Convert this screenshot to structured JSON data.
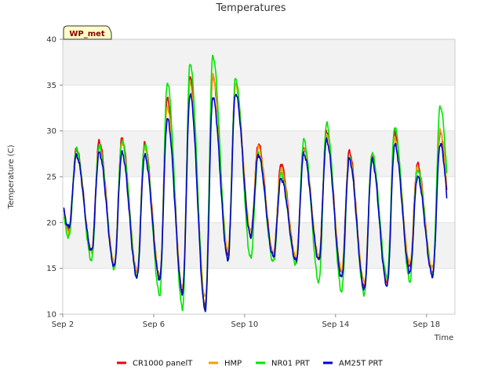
{
  "chart_data": {
    "type": "line",
    "title": "Temperatures",
    "badge": "WP_met",
    "xlabel": "Time",
    "ylabel": "Temperature (C)",
    "ylim": [
      10,
      40
    ],
    "xlim": [
      0,
      17.25
    ],
    "yticks": [
      10,
      15,
      20,
      25,
      30,
      35,
      40
    ],
    "xticks": [
      {
        "value": 0,
        "label": "Sep 2"
      },
      {
        "value": 4,
        "label": "Sep 6"
      },
      {
        "value": 8,
        "label": "Sep 10"
      },
      {
        "value": 12,
        "label": "Sep 14"
      },
      {
        "value": 16,
        "label": "Sep 18"
      }
    ],
    "grid": true,
    "legend_position": "bottom",
    "x_unit": "days since Sep 2",
    "series": [
      {
        "name": "CR1000 panelT",
        "color": "#e8000b",
        "minima": [
          19.2,
          16.8,
          15.3,
          14.4,
          14.0,
          12.5,
          10.9,
          16.6,
          18.6,
          16.5,
          16.0,
          16.1,
          14.5,
          12.9,
          13.4,
          15.2,
          14.5,
          14.3,
          15.2
        ],
        "maxima": [
          28.0,
          28.9,
          29.2,
          28.6,
          33.5,
          35.8,
          35.9,
          35.2,
          28.6,
          26.4,
          28.2,
          30.0,
          27.8,
          27.2,
          29.7,
          26.4,
          29.8
        ]
      },
      {
        "name": "HMP",
        "color": "#f0a000",
        "minima": [
          19.0,
          16.9,
          15.6,
          14.8,
          14.2,
          12.8,
          11.8,
          17.0,
          19.1,
          16.6,
          16.2,
          16.3,
          14.8,
          13.5,
          13.6,
          15.6,
          15.0,
          15.0,
          16.0
        ],
        "maxima": [
          27.5,
          28.3,
          28.8,
          28.2,
          32.6,
          35.2,
          36.0,
          35.0,
          28.2,
          25.8,
          28.0,
          29.6,
          27.2,
          27.0,
          29.2,
          26.0,
          30.0
        ]
      },
      {
        "name": "NR01 PRT",
        "color": "#00e600",
        "minima": [
          18.4,
          15.9,
          15.0,
          14.2,
          12.1,
          10.6,
          10.4,
          15.8,
          16.1,
          15.7,
          15.4,
          13.5,
          12.5,
          12.2,
          14.1,
          13.6,
          14.3,
          14.0,
          14.8
        ],
        "maxima": [
          28.0,
          28.4,
          28.9,
          28.6,
          35.3,
          37.4,
          38.2,
          35.7,
          27.5,
          25.3,
          29.0,
          30.8,
          27.1,
          27.6,
          30.4,
          25.8,
          32.7
        ]
      },
      {
        "name": "AM25T PRT",
        "color": "#0000cc",
        "minima": [
          19.5,
          16.9,
          15.2,
          14.0,
          13.8,
          12.3,
          10.5,
          16.0,
          18.5,
          16.3,
          15.8,
          15.9,
          14.0,
          12.7,
          13.1,
          14.6,
          14.2,
          13.8,
          14.5
        ],
        "maxima": [
          27.3,
          27.6,
          27.6,
          27.3,
          31.3,
          34.0,
          33.7,
          34.1,
          27.4,
          24.8,
          27.5,
          29.0,
          26.9,
          26.8,
          28.5,
          25.0,
          28.6
        ]
      }
    ]
  }
}
